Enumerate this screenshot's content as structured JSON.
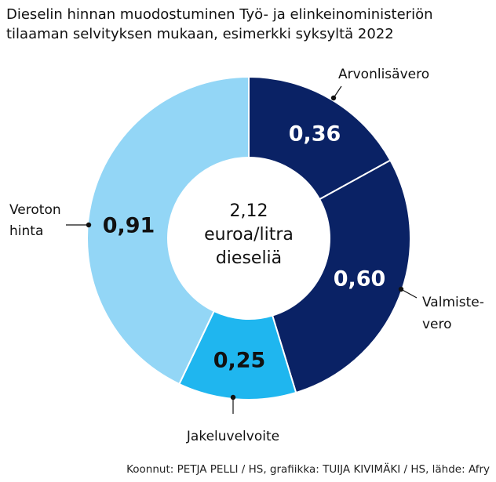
{
  "title_lines": [
    "Dieselin hinnan muodostuminen Työ- ja elinkeinoministeriön",
    "tilaaman selvityksen mukaan, esimerkki syksyltä 2022"
  ],
  "center_label": [
    "2,12",
    "euroa/litra",
    "dieseliä"
  ],
  "source": "Koonnut: PETJA PELLI / HS, grafiikka: TUIJA KIVIMÄKI / HS, lähde: Afry",
  "colors": {
    "arvonlisavero": "#0a2265",
    "valmistevero": "#0a2265",
    "jakeluvelvoite": "#1fb6ef",
    "veroton": "#93d6f6"
  },
  "chart_data": {
    "type": "pie",
    "variant": "donut",
    "total": 2.12,
    "unit": "euroa/litra",
    "slices": [
      {
        "key": "arvonlisavero",
        "labels": [
          "Arvonlisävero"
        ],
        "value": 0.36,
        "value_label": "0,36"
      },
      {
        "key": "valmistevero",
        "labels": [
          "Valmiste-",
          "vero"
        ],
        "value": 0.6,
        "value_label": "0,60"
      },
      {
        "key": "jakeluvelvoite",
        "labels": [
          "Jakeluvelvoite"
        ],
        "value": 0.25,
        "value_label": "0,25"
      },
      {
        "key": "veroton",
        "labels": [
          "Veroton",
          "hinta"
        ],
        "value": 0.91,
        "value_label": "0,91"
      }
    ]
  }
}
